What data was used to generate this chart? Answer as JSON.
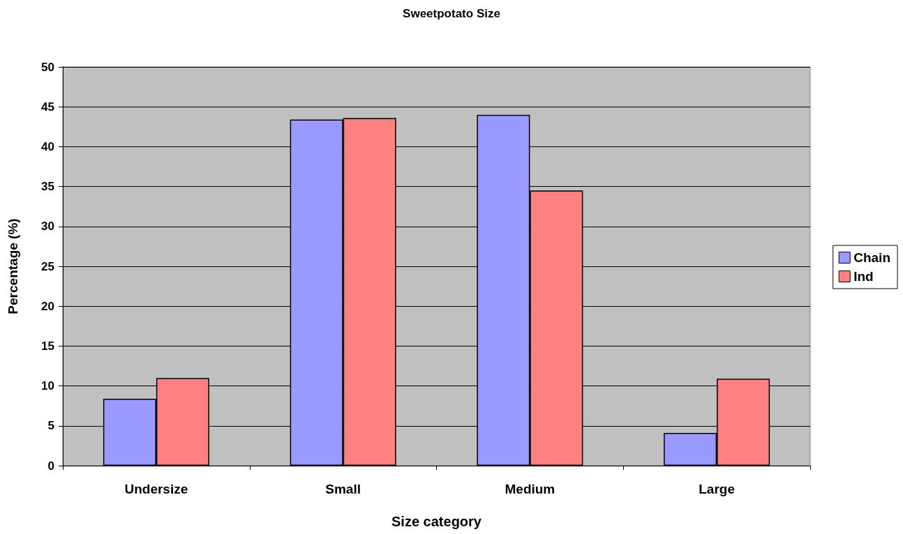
{
  "chart_data": {
    "type": "bar",
    "title": "Sweetpotato Size",
    "xlabel": "Size category",
    "ylabel": "Percentage (%)",
    "categories": [
      "Undersize",
      "Small",
      "Medium",
      "Large"
    ],
    "series": [
      {
        "name": "Chain",
        "color": "#9999ff",
        "values": [
          8.4,
          43.4,
          44.0,
          4.1
        ]
      },
      {
        "name": "Ind",
        "color": "#ff8080",
        "values": [
          11.0,
          43.6,
          34.5,
          10.9
        ]
      }
    ],
    "ylim": [
      0,
      50
    ],
    "yticks": [
      0,
      5,
      10,
      15,
      20,
      25,
      30,
      35,
      40,
      45,
      50
    ],
    "grid": "y",
    "legend": "right"
  }
}
